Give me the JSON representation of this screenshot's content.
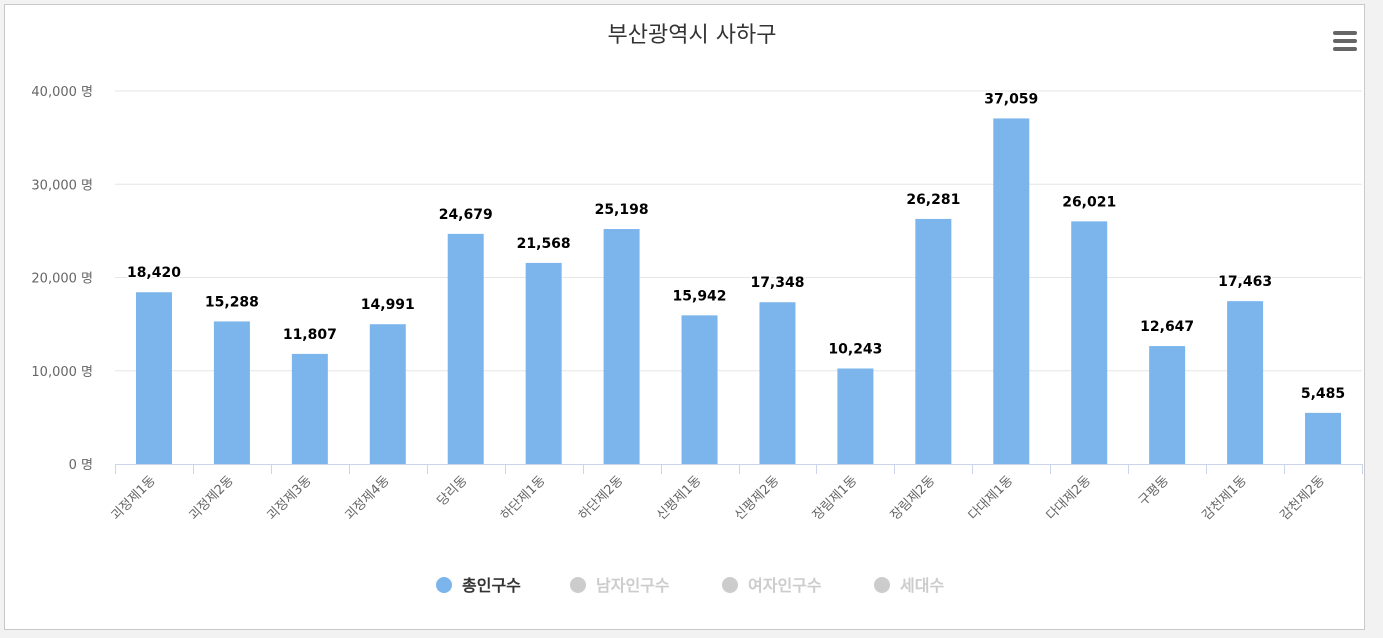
{
  "chart_data": {
    "type": "bar",
    "title": "부산광역시 사하구",
    "categories": [
      "괴정제1동",
      "괴정제2동",
      "괴정제3동",
      "괴정제4동",
      "당리동",
      "하단제1동",
      "하단제2동",
      "신평제1동",
      "신평제2동",
      "장림제1동",
      "장림제2동",
      "다대제1동",
      "다대제2동",
      "구평동",
      "감천제1동",
      "감천제2동"
    ],
    "series": [
      {
        "name": "총인구수",
        "values": [
          18420,
          15288,
          11807,
          14991,
          24679,
          21568,
          25198,
          15942,
          17348,
          10243,
          26281,
          37059,
          26021,
          12647,
          17463,
          5485
        ]
      }
    ],
    "value_labels": [
      "18,420",
      "15,288",
      "11,807",
      "14,991",
      "24,679",
      "21,568",
      "25,198",
      "15,942",
      "17,348",
      "10,243",
      "26,281",
      "37,059",
      "26,021",
      "12,647",
      "17,463",
      "5,485"
    ],
    "ylim": [
      0,
      40000
    ],
    "yticks": [
      0,
      10000,
      20000,
      30000,
      40000
    ],
    "ytick_labels": [
      "0 명",
      "10,000 명",
      "20,000 명",
      "30,000 명",
      "40,000 명"
    ],
    "grid": true,
    "legend_position": "bottom",
    "legend": [
      {
        "label": "총인구수",
        "active": true
      },
      {
        "label": "남자인구수",
        "active": false
      },
      {
        "label": "여자인구수",
        "active": false
      },
      {
        "label": "세대수",
        "active": false
      }
    ],
    "colors": {
      "bar": "#7cb5ec",
      "inactive": "#cccccc",
      "text": "#333333",
      "axis_label": "#666666",
      "grid": "#e6e6e6",
      "axis_line": "#ccd6eb"
    }
  },
  "menu": {
    "icon": "hamburger-menu-icon"
  }
}
